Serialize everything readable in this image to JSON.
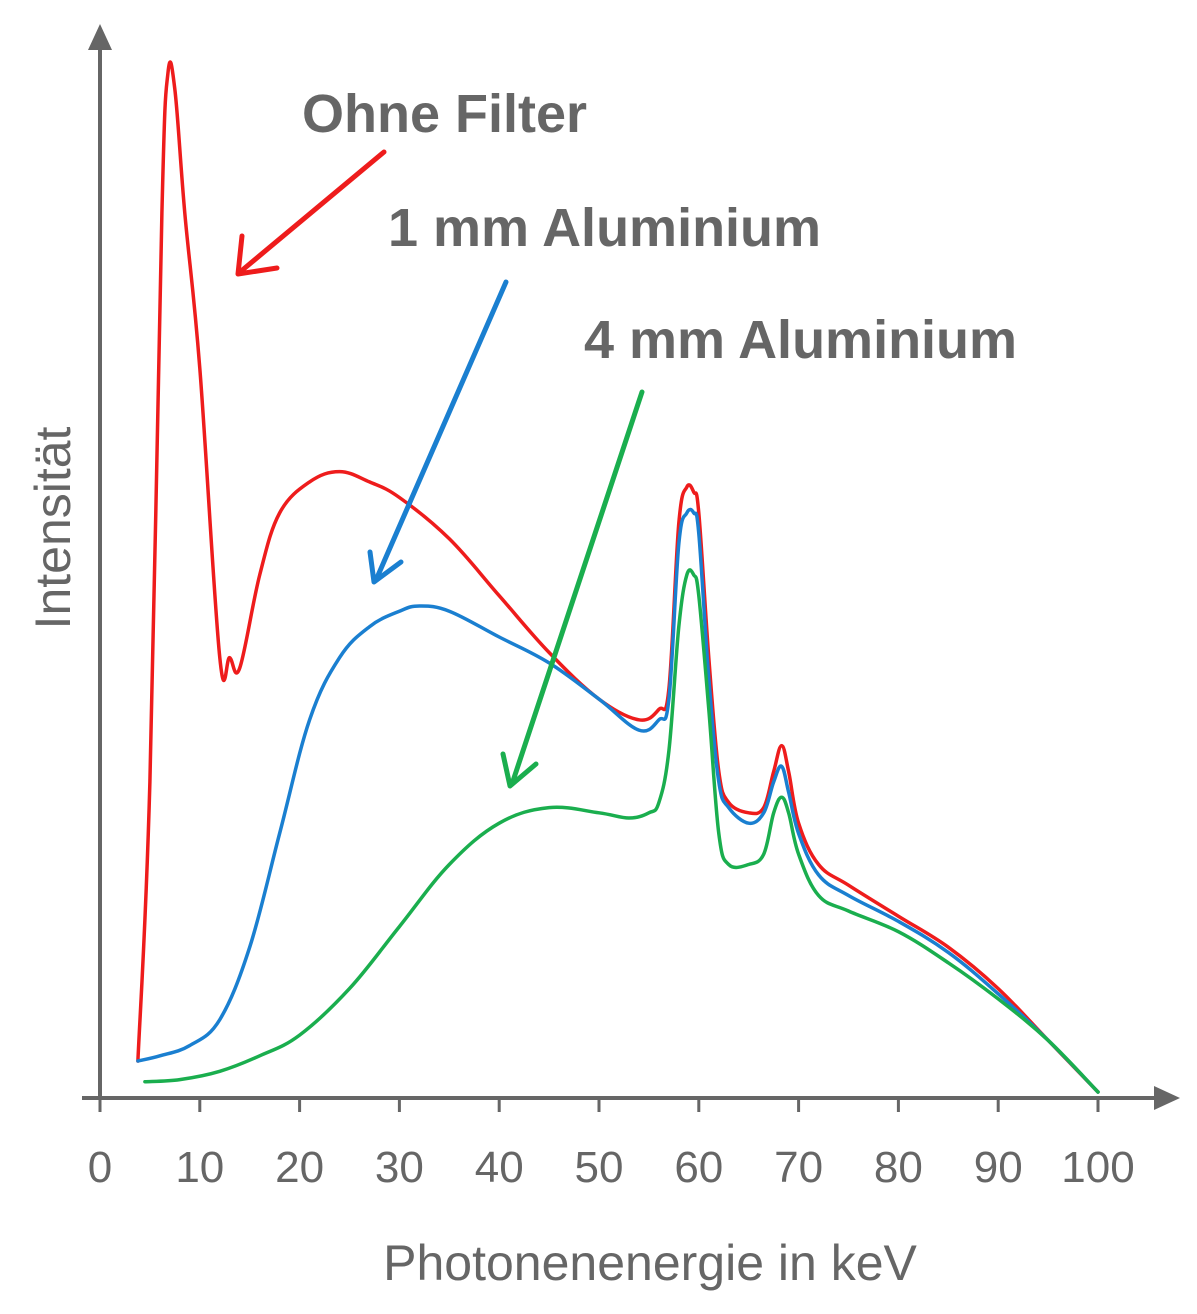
{
  "chart_data": {
    "type": "line",
    "xlabel": "Photonenenergie in keV",
    "ylabel": "Intensität",
    "xlim": [
      0,
      100
    ],
    "ylim": [
      0,
      1.0
    ],
    "xticks": [
      "0",
      "10",
      "20",
      "30",
      "40",
      "50",
      "60",
      "70",
      "80",
      "90",
      "100"
    ],
    "grid": false,
    "series": [
      {
        "name": "Ohne Filter",
        "color": "#ee1c1c",
        "points": [
          [
            3.8,
            0.03
          ],
          [
            5,
            0.3
          ],
          [
            6.2,
            0.85
          ],
          [
            6.8,
            0.985
          ],
          [
            7.5,
            0.97
          ],
          [
            8.5,
            0.85
          ],
          [
            10,
            0.7
          ],
          [
            12,
            0.42
          ],
          [
            13,
            0.42
          ],
          [
            14,
            0.41
          ],
          [
            16,
            0.5
          ],
          [
            18,
            0.56
          ],
          [
            21,
            0.59
          ],
          [
            24,
            0.6
          ],
          [
            27,
            0.59
          ],
          [
            30,
            0.575
          ],
          [
            35,
            0.535
          ],
          [
            40,
            0.48
          ],
          [
            45,
            0.425
          ],
          [
            50,
            0.38
          ],
          [
            54,
            0.36
          ],
          [
            56,
            0.37
          ],
          [
            57,
            0.39
          ],
          [
            58,
            0.55
          ],
          [
            58.8,
            0.585
          ],
          [
            59.5,
            0.58
          ],
          [
            60,
            0.56
          ],
          [
            61,
            0.42
          ],
          [
            62,
            0.31
          ],
          [
            63,
            0.28
          ],
          [
            65,
            0.27
          ],
          [
            66.5,
            0.275
          ],
          [
            67.5,
            0.31
          ],
          [
            68.3,
            0.335
          ],
          [
            69,
            0.31
          ],
          [
            70,
            0.26
          ],
          [
            72,
            0.22
          ],
          [
            75,
            0.2
          ],
          [
            80,
            0.17
          ],
          [
            85,
            0.14
          ],
          [
            90,
            0.1
          ],
          [
            95,
            0.05
          ],
          [
            100,
            0.0
          ]
        ]
      },
      {
        "name": "1 mm Aluminium",
        "color": "#1a7fd0",
        "points": [
          [
            3.8,
            0.03
          ],
          [
            6,
            0.035
          ],
          [
            9,
            0.045
          ],
          [
            12,
            0.07
          ],
          [
            15,
            0.14
          ],
          [
            18,
            0.25
          ],
          [
            21,
            0.36
          ],
          [
            24,
            0.42
          ],
          [
            27,
            0.45
          ],
          [
            30,
            0.465
          ],
          [
            32,
            0.47
          ],
          [
            35,
            0.465
          ],
          [
            40,
            0.44
          ],
          [
            45,
            0.415
          ],
          [
            50,
            0.38
          ],
          [
            54,
            0.35
          ],
          [
            56,
            0.36
          ],
          [
            57,
            0.38
          ],
          [
            58,
            0.53
          ],
          [
            58.8,
            0.56
          ],
          [
            59.5,
            0.56
          ],
          [
            60,
            0.54
          ],
          [
            61,
            0.4
          ],
          [
            62,
            0.3
          ],
          [
            63,
            0.275
          ],
          [
            65,
            0.26
          ],
          [
            66.5,
            0.27
          ],
          [
            67.5,
            0.3
          ],
          [
            68.3,
            0.315
          ],
          [
            69,
            0.29
          ],
          [
            70,
            0.25
          ],
          [
            72,
            0.21
          ],
          [
            75,
            0.19
          ],
          [
            80,
            0.165
          ],
          [
            85,
            0.135
          ],
          [
            90,
            0.095
          ],
          [
            95,
            0.05
          ],
          [
            100,
            0.0
          ]
        ]
      },
      {
        "name": "4 mm Aluminium",
        "color": "#1aae4e",
        "points": [
          [
            4.5,
            0.01
          ],
          [
            8,
            0.012
          ],
          [
            12,
            0.02
          ],
          [
            16,
            0.035
          ],
          [
            20,
            0.055
          ],
          [
            25,
            0.1
          ],
          [
            30,
            0.16
          ],
          [
            35,
            0.22
          ],
          [
            40,
            0.26
          ],
          [
            45,
            0.275
          ],
          [
            50,
            0.27
          ],
          [
            53,
            0.265
          ],
          [
            55,
            0.27
          ],
          [
            56,
            0.28
          ],
          [
            57,
            0.33
          ],
          [
            58,
            0.45
          ],
          [
            58.8,
            0.5
          ],
          [
            59.5,
            0.5
          ],
          [
            60,
            0.48
          ],
          [
            61,
            0.37
          ],
          [
            62,
            0.25
          ],
          [
            63,
            0.22
          ],
          [
            65,
            0.22
          ],
          [
            66.5,
            0.23
          ],
          [
            67.5,
            0.27
          ],
          [
            68.3,
            0.285
          ],
          [
            69,
            0.27
          ],
          [
            70,
            0.23
          ],
          [
            72,
            0.19
          ],
          [
            75,
            0.175
          ],
          [
            80,
            0.155
          ],
          [
            85,
            0.125
          ],
          [
            90,
            0.09
          ],
          [
            95,
            0.05
          ],
          [
            100,
            0.0
          ]
        ]
      }
    ],
    "annotations": [
      {
        "text": "Ohne Filter",
        "color": "#ee1c1c"
      },
      {
        "text": "1 mm Aluminium",
        "color": "#1a7fd0"
      },
      {
        "text": "4 mm Aluminium",
        "color": "#1aae4e"
      }
    ]
  }
}
